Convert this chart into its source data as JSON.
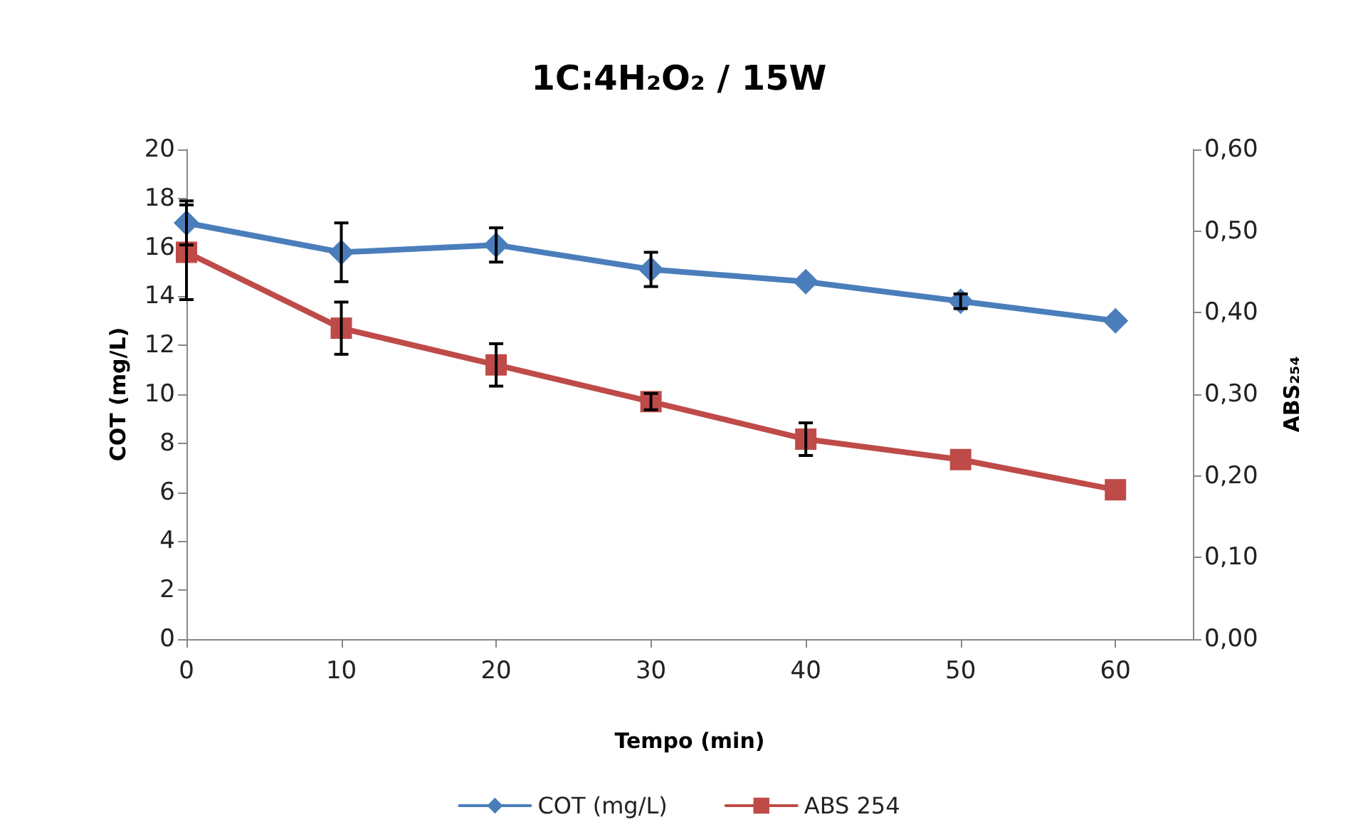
{
  "chart_data": {
    "type": "line",
    "title": "1C:4H₂O₂ / 15W",
    "xlabel": "Tempo (min)",
    "ylabel": "COT (mg/L)",
    "y2label": "ABS₂₅₄",
    "x": [
      0,
      10,
      20,
      30,
      40,
      50,
      60
    ],
    "series": [
      {
        "name": "COT (mg/L)",
        "color": "#4a7ebb",
        "marker": "diamond",
        "values": [
          17.0,
          15.8,
          16.1,
          15.1,
          14.6,
          13.8,
          13.0
        ],
        "errors": [
          0.9,
          1.2,
          0.7,
          0.7,
          null,
          0.3,
          null
        ]
      },
      {
        "name": "ABS 254",
        "color": "#be4b48",
        "marker": "square",
        "axis": "y2",
        "values": [
          0.474,
          0.381,
          0.336,
          0.291,
          0.245,
          0.22,
          0.183
        ],
        "errors": [
          0.058,
          0.032,
          0.026,
          0.01,
          0.02,
          null,
          null
        ]
      }
    ],
    "xlim": [
      0,
      65
    ],
    "xticks": [
      0,
      10,
      20,
      30,
      40,
      50,
      60
    ],
    "ylim": [
      0,
      20
    ],
    "yticks": [
      0,
      2,
      4,
      6,
      8,
      10,
      12,
      14,
      16,
      18,
      20
    ],
    "y2lim": [
      0,
      0.6
    ],
    "y2ticks": [
      {
        "value": 0,
        "label": "0,00"
      },
      {
        "value": 0.1,
        "label": "0,10"
      },
      {
        "value": 0.2,
        "label": "0,20"
      },
      {
        "value": 0.3,
        "label": "0,30"
      },
      {
        "value": 0.4,
        "label": "0,40"
      },
      {
        "value": 0.5,
        "label": "0,50"
      },
      {
        "value": 0.6,
        "label": "0,60"
      }
    ],
    "legend": "bottom",
    "grid": false,
    "line_style": "solid"
  }
}
